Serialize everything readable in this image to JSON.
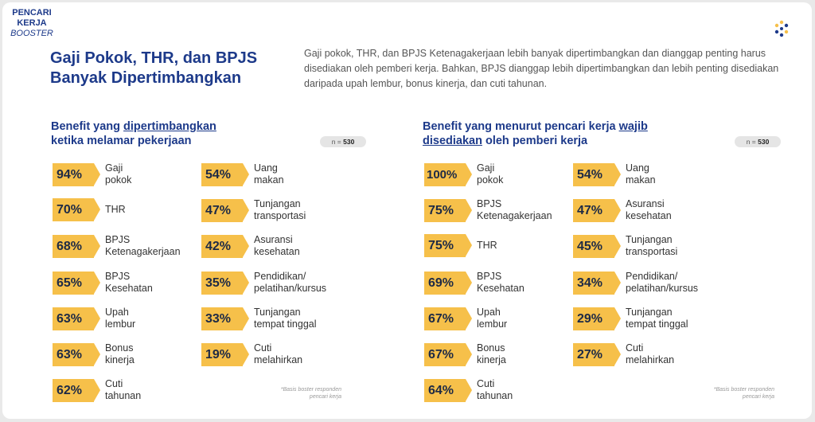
{
  "brand": {
    "line1": "PENCARI",
    "line2": "KERJA",
    "line3": "BOOSTER"
  },
  "title": "Gaji Pokok, THR, dan BPJS Banyak Dipertimbangkan",
  "intro": "Gaji pokok, THR, dan BPJS Ketenagakerjaan lebih banyak dipertimbangkan dan dianggap penting harus disediakan oleh pemberi kerja. Bahkan, BPJS dianggap lebih dipertimbangkan dan lebih penting disediakan daripada upah lembur, bonus kinerja, dan cuti tahunan.",
  "left": {
    "head_pre": "Benefit yang ",
    "head_u": "dipertimbangkan",
    "head_post": "ketika melamar pekerjaan",
    "n_label": "n = ",
    "n_value": "530",
    "col1": [
      {
        "value": "94%",
        "label": "Gaji\npokok"
      },
      {
        "value": "70%",
        "label": "THR"
      },
      {
        "value": "68%",
        "label": "BPJS\nKetenagakerjaan"
      },
      {
        "value": "65%",
        "label": "BPJS\nKesehatan"
      },
      {
        "value": "63%",
        "label": "Upah\nlembur"
      },
      {
        "value": "63%",
        "label": "Bonus\nkinerja"
      },
      {
        "value": "62%",
        "label": "Cuti\ntahunan"
      }
    ],
    "col2": [
      {
        "value": "54%",
        "label": "Uang\nmakan"
      },
      {
        "value": "47%",
        "label": "Tunjangan\ntransportasi"
      },
      {
        "value": "42%",
        "label": "Asuransi\nkesehatan"
      },
      {
        "value": "35%",
        "label": "Pendidikan/\npelatihan/kursus"
      },
      {
        "value": "33%",
        "label": "Tunjangan\ntempat tinggal"
      },
      {
        "value": "19%",
        "label": "Cuti\nmelahirkan"
      }
    ],
    "footnote": "*Basis boster responden\npencari kerja"
  },
  "right": {
    "head_pre": "Benefit yang menurut pencari kerja ",
    "head_u1": "wajib",
    "head_u2": "disediakan",
    "head_post": " oleh pemberi kerja",
    "n_label": "n = ",
    "n_value": "530",
    "col1": [
      {
        "value": "100%",
        "label": "Gaji\npokok"
      },
      {
        "value": "75%",
        "label": "BPJS\nKetenagakerjaan"
      },
      {
        "value": "75%",
        "label": "THR"
      },
      {
        "value": "69%",
        "label": "BPJS\nKesehatan"
      },
      {
        "value": "67%",
        "label": "Upah\nlembur"
      },
      {
        "value": "67%",
        "label": "Bonus\nkinerja"
      },
      {
        "value": "64%",
        "label": "Cuti\ntahunan"
      }
    ],
    "col2": [
      {
        "value": "54%",
        "label": "Uang\nmakan"
      },
      {
        "value": "47%",
        "label": "Asuransi\nkesehatan"
      },
      {
        "value": "45%",
        "label": "Tunjangan\ntransportasi"
      },
      {
        "value": "34%",
        "label": "Pendidikan/\npelatihan/kursus"
      },
      {
        "value": "29%",
        "label": "Tunjangan\ntempat tinggal"
      },
      {
        "value": "27%",
        "label": "Cuti\nmelahirkan"
      }
    ],
    "footnote": "*Basis boster responden\npencari kerja"
  },
  "colors": {
    "accent": "#f6c04a",
    "heading": "#1d3a8a"
  },
  "icons": {
    "logo": "dots-logo-icon"
  }
}
